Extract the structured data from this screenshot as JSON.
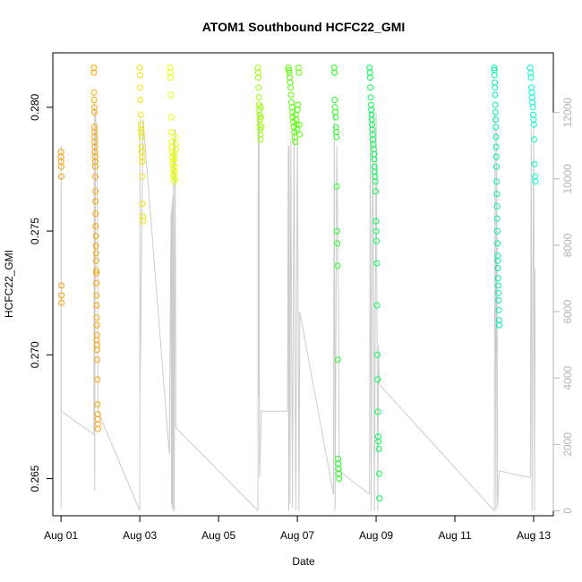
{
  "chart_data": {
    "type": "scatter",
    "title": "ATOM1 Southbound HCFC22_GMI",
    "xlabel": "Date",
    "ylabel": "HCFC22_GMI",
    "xlim": [
      "2016-07-31T19:00",
      "2016-08-13T12:00"
    ],
    "ylim": [
      0.2635,
      0.2822
    ],
    "y2lim": [
      -150,
      13800
    ],
    "x_ticks": [
      {
        "t": "2016-08-01T00:00",
        "label": "Aug 01"
      },
      {
        "t": "2016-08-03T00:00",
        "label": "Aug 03"
      },
      {
        "t": "2016-08-05T00:00",
        "label": "Aug 05"
      },
      {
        "t": "2016-08-07T00:00",
        "label": "Aug 07"
      },
      {
        "t": "2016-08-09T00:00",
        "label": "Aug 09"
      },
      {
        "t": "2016-08-11T00:00",
        "label": "Aug 11"
      },
      {
        "t": "2016-08-13T00:00",
        "label": "Aug 13"
      }
    ],
    "y_ticks": [
      {
        "v": 0.265,
        "label": "0.265"
      },
      {
        "v": 0.27,
        "label": "0.270"
      },
      {
        "v": 0.275,
        "label": "0.275"
      },
      {
        "v": 0.28,
        "label": "0.280"
      }
    ],
    "y2_ticks": [
      {
        "v": 0,
        "label": "0"
      },
      {
        "v": 2000,
        "label": "2000"
      },
      {
        "v": 4000,
        "label": "4000"
      },
      {
        "v": 6000,
        "label": "6000"
      },
      {
        "v": 8000,
        "label": "8000"
      },
      {
        "v": 10000,
        "label": "10000"
      },
      {
        "v": 12000,
        "label": "12000"
      }
    ],
    "grid": false,
    "colors": {
      "altitude_line": "#cccccc",
      "right_axis": "#b3b3b3"
    },
    "clusters": [
      {
        "start": "2016-08-01T00:00",
        "end": "2016-08-01T00:20",
        "color": "#ff9b00",
        "values": [
          0.2782,
          0.278,
          0.2778,
          0.2776,
          0.2772,
          0.2728,
          0.2724,
          0.2721
        ]
      },
      {
        "start": "2016-08-01T20:00",
        "end": "2016-08-01T22:30",
        "color": "#ffa500",
        "values": [
          0.2816,
          0.2814,
          0.2806,
          0.2803,
          0.28,
          0.2798,
          0.2792,
          0.279,
          0.2788,
          0.2786,
          0.2784,
          0.2782,
          0.278,
          0.2778,
          0.2776,
          0.2772,
          0.2766,
          0.2762,
          0.2757,
          0.2752,
          0.2748,
          0.2744,
          0.2741,
          0.2738,
          0.2734,
          0.2733,
          0.2729,
          0.2724,
          0.272,
          0.2715,
          0.2712,
          0.2708,
          0.2706,
          0.2704,
          0.2702,
          0.2698,
          0.269,
          0.268,
          0.2676,
          0.2674,
          0.2672,
          0.267
        ]
      },
      {
        "start": "2016-08-03T00:00",
        "end": "2016-08-03T02:00",
        "color": "#f2e600",
        "values": [
          0.2816,
          0.2813,
          0.2808,
          0.2803,
          0.2797,
          0.2793,
          0.2791,
          0.279,
          0.2788,
          0.2784,
          0.2782,
          0.278,
          0.2778,
          0.2772,
          0.2761,
          0.2756,
          0.2754
        ]
      },
      {
        "start": "2016-08-03T18:30",
        "end": "2016-08-03T22:00",
        "color": "#e8ff00",
        "values": [
          0.2816,
          0.2814,
          0.2812,
          0.2805,
          0.2796,
          0.279,
          0.2786,
          0.2784,
          0.2782,
          0.278,
          0.2778,
          0.2777,
          0.2775,
          0.2773,
          0.2772,
          0.277,
          0.2781,
          0.2779,
          0.2776,
          0.2774,
          0.2771,
          0.2788,
          0.2785,
          0.2783
        ]
      },
      {
        "start": "2016-08-06T00:00",
        "end": "2016-08-06T02:00",
        "color": "#99ff00",
        "values": [
          0.2816,
          0.2814,
          0.2812,
          0.2808,
          0.2804,
          0.2801,
          0.2799,
          0.2797,
          0.2795,
          0.2793,
          0.2791,
          0.2789,
          0.2787,
          0.28,
          0.2796,
          0.2792
        ]
      },
      {
        "start": "2016-08-06T18:30",
        "end": "2016-08-07T01:30",
        "color": "#55ff00",
        "values": [
          0.2816,
          0.2815,
          0.2814,
          0.2812,
          0.281,
          0.2808,
          0.2805,
          0.2802,
          0.28,
          0.2798,
          0.2796,
          0.2794,
          0.2792,
          0.279,
          0.2788,
          0.2786,
          0.2797,
          0.2795,
          0.2793,
          0.2791,
          0.2799,
          0.2801,
          0.2816,
          0.2814,
          0.2793,
          0.2789
        ]
      },
      {
        "start": "2016-08-07T22:30",
        "end": "2016-08-08T01:30",
        "color": "#22ff22",
        "values": [
          0.2816,
          0.2814,
          0.2803,
          0.28,
          0.2798,
          0.2796,
          0.2792,
          0.279,
          0.2788,
          0.2768,
          0.275,
          0.2745,
          0.2736,
          0.2698,
          0.2658,
          0.2656,
          0.2654,
          0.2652,
          0.265
        ]
      },
      {
        "start": "2016-08-08T20:00",
        "end": "2016-08-09T02:00",
        "color": "#00ff55",
        "values": [
          0.2816,
          0.2814,
          0.2812,
          0.2808,
          0.2804,
          0.2801,
          0.2799,
          0.2797,
          0.2795,
          0.2793,
          0.2791,
          0.2789,
          0.2787,
          0.2785,
          0.2783,
          0.2781,
          0.2779,
          0.2776,
          0.2774,
          0.2772,
          0.277,
          0.2766,
          0.2754,
          0.275,
          0.2746,
          0.2737,
          0.272,
          0.27,
          0.269,
          0.2677,
          0.2667,
          0.2665,
          0.2662,
          0.2652,
          0.2642
        ]
      },
      {
        "start": "2016-08-12T00:00",
        "end": "2016-08-12T03:00",
        "color": "#00f0b0",
        "values": [
          0.2816,
          0.2815,
          0.2813,
          0.281,
          0.2808,
          0.2805,
          0.2801,
          0.2798,
          0.2795,
          0.2792,
          0.2788,
          0.2784,
          0.278,
          0.2776,
          0.277,
          0.2765,
          0.276,
          0.2755,
          0.275,
          0.2745,
          0.274,
          0.2738,
          0.2735,
          0.2731,
          0.2728,
          0.2725,
          0.2722,
          0.2718,
          0.2714,
          0.2712
        ]
      },
      {
        "start": "2016-08-12T22:00",
        "end": "2016-08-13T01:00",
        "color": "#00ffcc",
        "values": [
          0.2816,
          0.2814,
          0.2812,
          0.2808,
          0.2806,
          0.2804,
          0.2802,
          0.28,
          0.2797,
          0.2795,
          0.2793,
          0.2787,
          0.2777,
          0.2772,
          0.277
        ]
      }
    ],
    "altitude_line": [
      [
        "2016-08-01T00:00",
        50
      ],
      [
        "2016-08-01T00:05",
        11000
      ],
      [
        "2016-08-01T00:10",
        3000
      ],
      [
        "2016-08-01T20:00",
        2300
      ],
      [
        "2016-08-01T20:15",
        12300
      ],
      [
        "2016-08-01T20:30",
        600
      ],
      [
        "2016-08-01T21:00",
        12100
      ],
      [
        "2016-08-01T22:00",
        10500
      ],
      [
        "2016-08-01T22:30",
        3000
      ],
      [
        "2016-08-03T00:00",
        0
      ],
      [
        "2016-08-03T00:05",
        11800
      ],
      [
        "2016-08-03T00:10",
        3600
      ],
      [
        "2016-08-03T02:00",
        11800
      ],
      [
        "2016-08-03T18:00",
        1700
      ],
      [
        "2016-08-03T19:00",
        9000
      ],
      [
        "2016-08-03T19:15",
        200
      ],
      [
        "2016-08-03T19:30",
        9200
      ],
      [
        "2016-08-03T19:45",
        100
      ],
      [
        "2016-08-03T20:00",
        9500
      ],
      [
        "2016-08-03T20:15",
        0
      ],
      [
        "2016-08-03T20:30",
        11200
      ],
      [
        "2016-08-03T21:00",
        0
      ],
      [
        "2016-08-03T21:30",
        11500
      ],
      [
        "2016-08-03T22:00",
        2500
      ],
      [
        "2016-08-06T00:00",
        0
      ],
      [
        "2016-08-06T00:10",
        12000
      ],
      [
        "2016-08-06T00:20",
        3500
      ],
      [
        "2016-08-06T00:40",
        12000
      ],
      [
        "2016-08-06T01:00",
        1000
      ],
      [
        "2016-08-06T02:00",
        3000
      ],
      [
        "2016-08-06T18:00",
        3000
      ],
      [
        "2016-08-06T18:30",
        11000
      ],
      [
        "2016-08-06T18:45",
        0
      ],
      [
        "2016-08-06T19:00",
        11000
      ],
      [
        "2016-08-06T19:30",
        200
      ],
      [
        "2016-08-06T20:00",
        11200
      ],
      [
        "2016-08-06T21:00",
        100
      ],
      [
        "2016-08-06T22:00",
        11500
      ],
      [
        "2016-08-06T23:00",
        0
      ],
      [
        "2016-08-07T00:00",
        11500
      ],
      [
        "2016-08-07T01:00",
        0
      ],
      [
        "2016-08-07T01:30",
        6000
      ],
      [
        "2016-08-07T22:00",
        500
      ],
      [
        "2016-08-07T22:30",
        12000
      ],
      [
        "2016-08-07T23:00",
        0
      ],
      [
        "2016-08-08T00:00",
        11000
      ],
      [
        "2016-08-08T01:00",
        6700
      ],
      [
        "2016-08-08T01:30",
        1200
      ],
      [
        "2016-08-08T20:00",
        500
      ],
      [
        "2016-08-08T20:30",
        12000
      ],
      [
        "2016-08-08T21:00",
        0
      ],
      [
        "2016-08-08T22:00",
        12000
      ],
      [
        "2016-08-08T23:00",
        0
      ],
      [
        "2016-08-09T00:00",
        12000
      ],
      [
        "2016-08-09T01:00",
        0
      ],
      [
        "2016-08-09T01:30",
        5000
      ],
      [
        "2016-08-09T02:00",
        3800
      ],
      [
        "2016-08-12T00:00",
        0
      ],
      [
        "2016-08-12T00:30",
        12000
      ],
      [
        "2016-08-12T01:00",
        0
      ],
      [
        "2016-08-12T01:30",
        11500
      ],
      [
        "2016-08-12T02:00",
        100
      ],
      [
        "2016-08-12T03:00",
        1200
      ],
      [
        "2016-08-12T22:00",
        1000
      ],
      [
        "2016-08-12T22:30",
        11500
      ],
      [
        "2016-08-12T23:00",
        0
      ],
      [
        "2016-08-13T00:00",
        11800
      ],
      [
        "2016-08-13T00:30",
        0
      ],
      [
        "2016-08-13T01:00",
        7300
      ]
    ]
  }
}
